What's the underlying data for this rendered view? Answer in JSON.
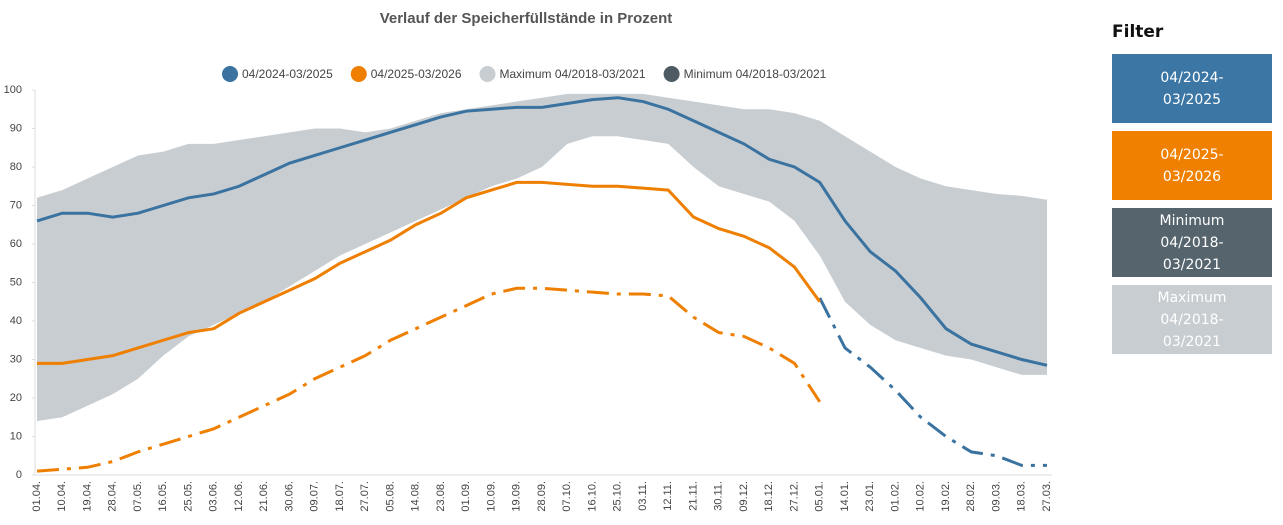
{
  "chart_data": {
    "type": "line",
    "title": "Verlauf der Speicherfüllstände in Prozent",
    "categories": [
      "01.04.",
      "10.04.",
      "19.04.",
      "28.04.",
      "07.05.",
      "16.05.",
      "25.05.",
      "03.06.",
      "12.06.",
      "21.06.",
      "30.06.",
      "09.07.",
      "18.07.",
      "27.07.",
      "05.08.",
      "14.08.",
      "23.08.",
      "01.09.",
      "10.09.",
      "19.09.",
      "28.09.",
      "07.10.",
      "16.10.",
      "25.10.",
      "03.11.",
      "12.11.",
      "21.11.",
      "30.11.",
      "09.12.",
      "18.12.",
      "27.12.",
      "05.01.",
      "14.01.",
      "23.01.",
      "01.02.",
      "10.02.",
      "19.02.",
      "28.02.",
      "09.03.",
      "18.03.",
      "27.03."
    ],
    "ylim": [
      0,
      100
    ],
    "yticks": [
      0,
      10,
      20,
      30,
      40,
      50,
      60,
      70,
      80,
      90,
      100
    ],
    "grid": false,
    "series": [
      {
        "name": "04/2024-03/2025",
        "color": "#3a72a0",
        "values": [
          66,
          68,
          68,
          67,
          68,
          70,
          72,
          73,
          75,
          78,
          81,
          83,
          85,
          87,
          89,
          91,
          93,
          94.5,
          95,
          95.5,
          95.5,
          96.5,
          97.5,
          98,
          97,
          95,
          92,
          89,
          86,
          82,
          80,
          76,
          66,
          58,
          53,
          46,
          38,
          34,
          32,
          30,
          28.5
        ]
      },
      {
        "name": "04/2025-03/2026",
        "color": "#ee7f00",
        "values": [
          29,
          29,
          30,
          31,
          33,
          35,
          37,
          38,
          42,
          45,
          48,
          51,
          55,
          58,
          61,
          65,
          68,
          72,
          74,
          76,
          76,
          75.5,
          75,
          75,
          74.5,
          74,
          67,
          64,
          62,
          59,
          54,
          45,
          null,
          null,
          null,
          null,
          null,
          null,
          null,
          null,
          null
        ]
      },
      {
        "name": "Maximum 04/2018-03/2021",
        "color": "#c8cdd1",
        "values": [
          72,
          74,
          77,
          80,
          83,
          84,
          86,
          86,
          87,
          88,
          89,
          90,
          90,
          89,
          90,
          92,
          94,
          95,
          96,
          97,
          98,
          99,
          99,
          99,
          99,
          98,
          97,
          96,
          95,
          95,
          94,
          92,
          88,
          84,
          80,
          77,
          75,
          74,
          73,
          72.5,
          71.5
        ]
      },
      {
        "name": "Minimum 04/2018-03/2021",
        "color": "#4f5b63",
        "values": [
          14,
          15,
          18,
          21,
          25,
          31,
          36,
          39,
          42,
          45,
          49,
          53,
          57,
          60,
          63,
          66,
          69,
          72,
          75,
          77,
          80,
          86,
          88,
          88,
          87,
          86,
          80,
          75,
          73,
          71,
          66,
          57,
          45,
          39,
          35,
          33,
          31,
          30,
          28,
          26,
          26
        ]
      },
      {
        "color": "#ee7f00",
        "line_style": "dashed",
        "values": [
          1,
          1.5,
          2,
          3.5,
          6,
          8,
          10,
          12,
          15,
          18,
          21,
          25,
          28,
          31,
          35,
          38,
          41,
          44,
          47,
          48.5,
          48.5,
          48,
          47.5,
          47,
          47,
          46.5,
          41,
          37,
          36,
          33,
          29,
          19,
          null,
          null,
          null,
          null,
          null,
          null,
          null,
          null,
          null
        ]
      },
      {
        "color": "#3a72a0",
        "line_style": "dashed",
        "values": [
          null,
          null,
          null,
          null,
          null,
          null,
          null,
          null,
          null,
          null,
          null,
          null,
          null,
          null,
          null,
          null,
          null,
          null,
          null,
          null,
          null,
          null,
          null,
          null,
          null,
          null,
          null,
          null,
          null,
          null,
          null,
          46,
          33,
          28,
          22,
          15,
          10,
          6,
          5,
          2.5,
          2.5
        ]
      }
    ]
  },
  "filter": {
    "title": "Filter",
    "buttons": [
      "04/2024-03/2025",
      "04/2025-03/2026",
      "Minimum 04/2018-03/2021",
      "Maximum 04/2018-03/2021"
    ]
  }
}
